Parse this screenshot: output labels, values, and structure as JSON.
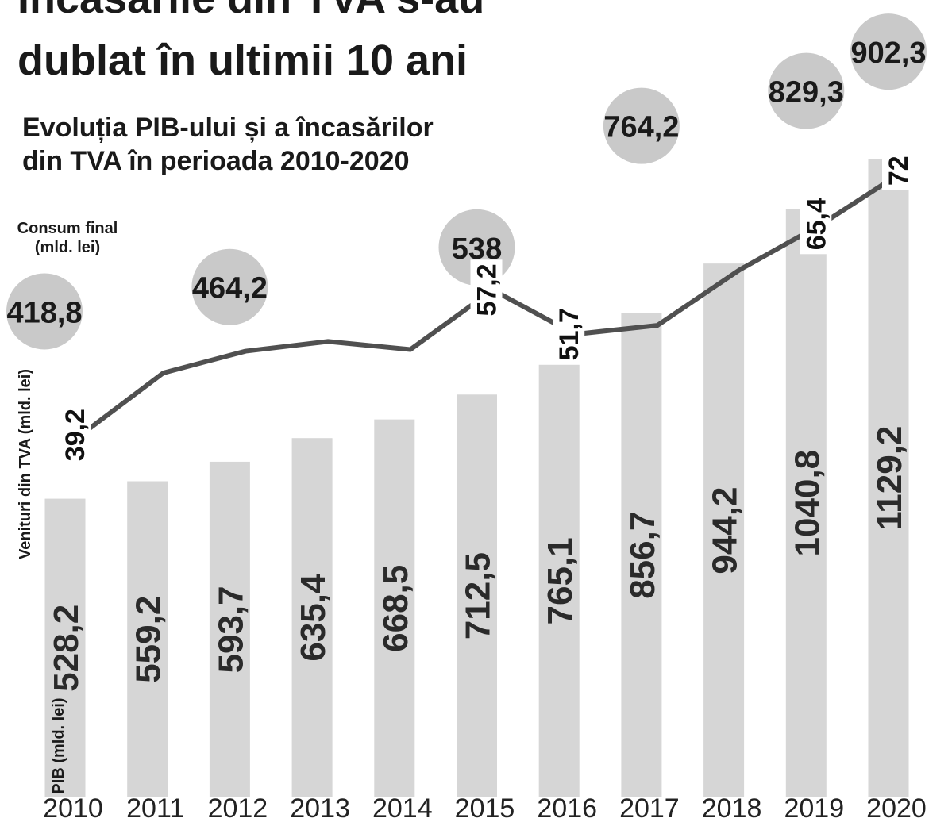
{
  "chart_data": {
    "type": "bar_line",
    "title": [
      "Încasările din TVA s-au",
      "dublat în ultimii 10 ani"
    ],
    "subtitle": [
      "Evoluția PIB-ului și a încasărilor",
      "din TVA în perioada 2010-2020"
    ],
    "y_label": "PIB (mld. lei)",
    "y2_label": "Venituri din TVA (mld. lei)",
    "bubble_label": [
      "Consum final",
      "(mld. lei)"
    ],
    "categories": [
      "2010",
      "2011",
      "2012",
      "2013",
      "2014",
      "2015",
      "2016",
      "2017",
      "2018",
      "2019",
      "2020"
    ],
    "ylim": [
      0,
      1270
    ],
    "y2lim": [
      0,
      80
    ],
    "series": [
      {
        "type": "bar",
        "color": "#d6d6d6",
        "values": [
          528.2,
          559.2,
          593.7,
          635.4,
          668.5,
          712.5,
          765.1,
          856.7,
          944.2,
          1040.8,
          1129.2
        ],
        "value_labels": [
          "528,2",
          "559,2",
          "593,7",
          "635,4",
          "668,5",
          "712,5",
          "765,1",
          "856,7",
          "944,2",
          "1040,8",
          "1129,2"
        ]
      },
      {
        "type": "line",
        "axis": "y2",
        "color": "#505050",
        "values": [
          39.2,
          46.9,
          49.6,
          50.8,
          49.8,
          57.2,
          51.7,
          52.8,
          59.7,
          65.4,
          72
        ],
        "value_labels": [
          "39,2",
          null,
          null,
          null,
          null,
          "57,2",
          "51,7",
          null,
          null,
          "65,4",
          "72"
        ]
      },
      {
        "type": "bubble",
        "color": "#c9c9c9",
        "ylim": [
          0,
          1000
        ],
        "values": [
          418.8,
          null,
          464.2,
          null,
          null,
          538,
          null,
          764.2,
          null,
          829.3,
          902.3
        ],
        "value_labels": [
          "418,8",
          null,
          "464,2",
          null,
          null,
          "538",
          null,
          "764,2",
          null,
          "829,3",
          "902,3"
        ]
      }
    ]
  }
}
